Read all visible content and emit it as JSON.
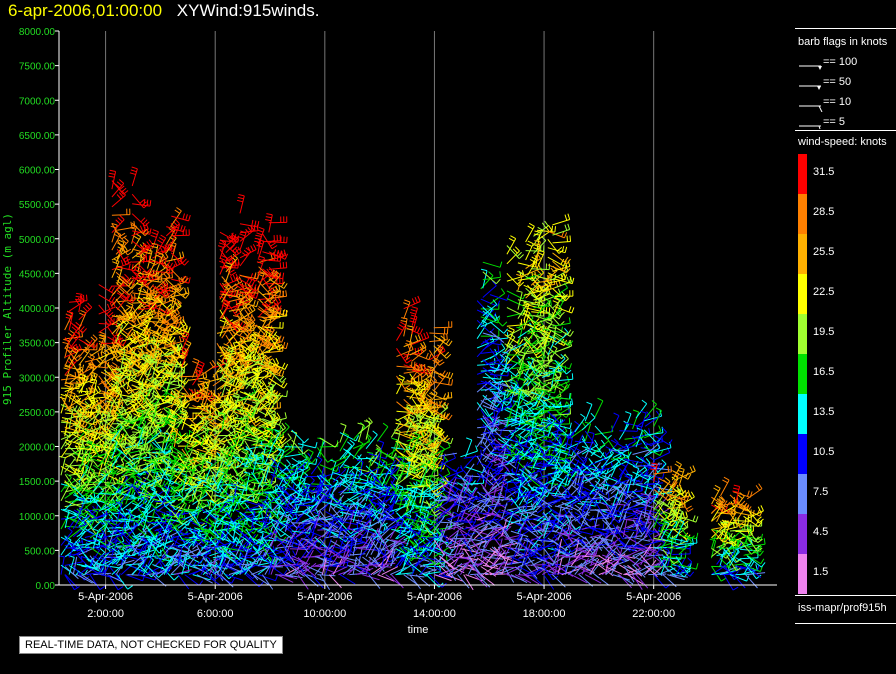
{
  "header": {
    "date": "6-apr-2006,01:00:00",
    "title": "XYWind:915winds."
  },
  "legend": {
    "barb_title": "barb flags in knots",
    "barbs": [
      "== 100",
      "== 50",
      "== 10",
      "== 5"
    ],
    "speed_title": "wind-speed: knots",
    "speed_scale": [
      {
        "label": "31.5",
        "color": "#ff0000"
      },
      {
        "label": "28.5",
        "color": "#ff8000"
      },
      {
        "label": "25.5",
        "color": "#ffb000"
      },
      {
        "label": "22.5",
        "color": "#ffff00"
      },
      {
        "label": "19.5",
        "color": "#a0ff30"
      },
      {
        "label": "16.5",
        "color": "#00e000"
      },
      {
        "label": "13.5",
        "color": "#00ffff"
      },
      {
        "label": "10.5",
        "color": "#0000ff"
      },
      {
        "label": "7.5",
        "color": "#6a8cff"
      },
      {
        "label": "4.5",
        "color": "#8a2be2"
      },
      {
        "label": "1.5",
        "color": "#ee82ee"
      }
    ],
    "source": "iss-mapr/prof915h"
  },
  "warning": "REAL-TIME DATA, NOT CHECKED FOR QUALITY",
  "chart_data": {
    "type": "scatter",
    "title": "6-apr-2006,01:00:00 XYWind:915winds.",
    "xlabel": "time",
    "ylabel": "915 Profiler Altitude (m agl)",
    "ylim": [
      0,
      8000
    ],
    "xlim_hours": [
      0.3,
      26.5
    ],
    "yticks": [
      "0.00",
      "500.00",
      "1000.00",
      "1500.00",
      "2000.00",
      "2500.00",
      "3000.00",
      "3500.00",
      "4000.00",
      "4500.00",
      "5000.00",
      "5500.00",
      "6000.00",
      "6500.00",
      "7000.00",
      "7500.00",
      "8000.00"
    ],
    "xticks": [
      {
        "hour": 2,
        "date": "5-Apr-2006",
        "time": "2:00:00"
      },
      {
        "hour": 6,
        "date": "5-Apr-2006",
        "time": "6:00:00"
      },
      {
        "hour": 10,
        "date": "5-Apr-2006",
        "time": "10:00:00"
      },
      {
        "hour": 14,
        "date": "5-Apr-2006",
        "time": "14:00:00"
      },
      {
        "hour": 18,
        "date": "5-Apr-2006",
        "time": "18:00:00"
      },
      {
        "hour": 22,
        "date": "5-Apr-2006",
        "time": "22:00:00"
      }
    ],
    "grid": "vertical",
    "series_note": "wind barbs colored by wind speed (knots)",
    "clusters": [
      {
        "from_hour": 0.3,
        "to_hour": 2.2,
        "top_m": 4500,
        "dominant_speed": 31.5
      },
      {
        "from_hour": 2.2,
        "to_hour": 4.5,
        "top_m": 5900,
        "dominant_speed": 31.5
      },
      {
        "from_hour": 4.5,
        "to_hour": 6.2,
        "top_m": 3500,
        "dominant_speed": 28.5
      },
      {
        "from_hour": 6.0,
        "to_hour": 8.0,
        "top_m": 5500,
        "dominant_speed": 31.5
      },
      {
        "from_hour": 8.0,
        "to_hour": 12.5,
        "top_m": 2400,
        "dominant_speed": 16.5
      },
      {
        "from_hour": 12.5,
        "to_hour": 14.0,
        "top_m": 4300,
        "dominant_speed": 31.5
      },
      {
        "from_hour": 14.0,
        "to_hour": 15.5,
        "top_m": 2000,
        "dominant_speed": 10.5
      },
      {
        "from_hour": 15.5,
        "to_hour": 16.5,
        "top_m": 4800,
        "dominant_speed": 13.5
      },
      {
        "from_hour": 16.5,
        "to_hour": 18.5,
        "top_m": 5300,
        "dominant_speed": 22.5
      },
      {
        "from_hour": 18.5,
        "to_hour": 22.0,
        "top_m": 2500,
        "dominant_speed": 13.5
      },
      {
        "from_hour": 22.0,
        "to_hour": 23.0,
        "top_m": 1800,
        "dominant_speed": 28.5
      },
      {
        "from_hour": 24.0,
        "to_hour": 25.5,
        "top_m": 1400,
        "dominant_speed": 28.5
      }
    ]
  }
}
